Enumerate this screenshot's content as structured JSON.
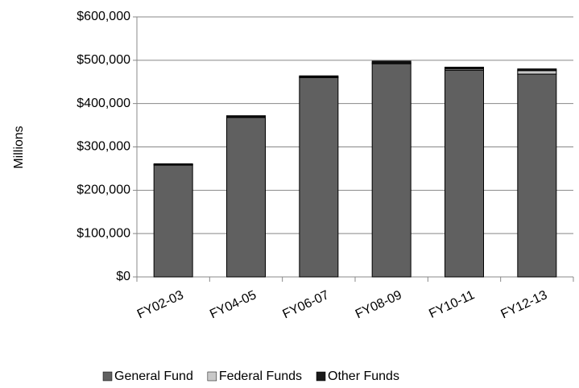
{
  "chart_data": {
    "type": "stacked-bar",
    "y_label": "Millions",
    "categories": [
      "FY02-03",
      "FY04-05",
      "FY06-07",
      "FY08-09",
      "FY10-11",
      "FY12-13"
    ],
    "series": [
      {
        "name": "General Fund",
        "color": "#606060",
        "values": [
          258000,
          368000,
          460000,
          492000,
          477000,
          468000
        ]
      },
      {
        "name": "Federal Funds",
        "color": "#c8c8c8",
        "values": [
          1000,
          1000,
          1000,
          2000,
          3000,
          8000
        ]
      },
      {
        "name": "Other Funds",
        "color": "#1a1a1a",
        "values": [
          2000,
          3000,
          3000,
          4000,
          4000,
          4000
        ]
      }
    ],
    "ylim": [
      0,
      600000
    ],
    "yticks": [
      {
        "value": 0,
        "label": "$0"
      },
      {
        "value": 100000,
        "label": "$100,000"
      },
      {
        "value": 200000,
        "label": "$200,000"
      },
      {
        "value": 300000,
        "label": "$300,000"
      },
      {
        "value": 400000,
        "label": "$400,000"
      },
      {
        "value": 500000,
        "label": "$500,000"
      },
      {
        "value": 600000,
        "label": "$600,000"
      }
    ],
    "grid": true,
    "legend": "bottom"
  }
}
